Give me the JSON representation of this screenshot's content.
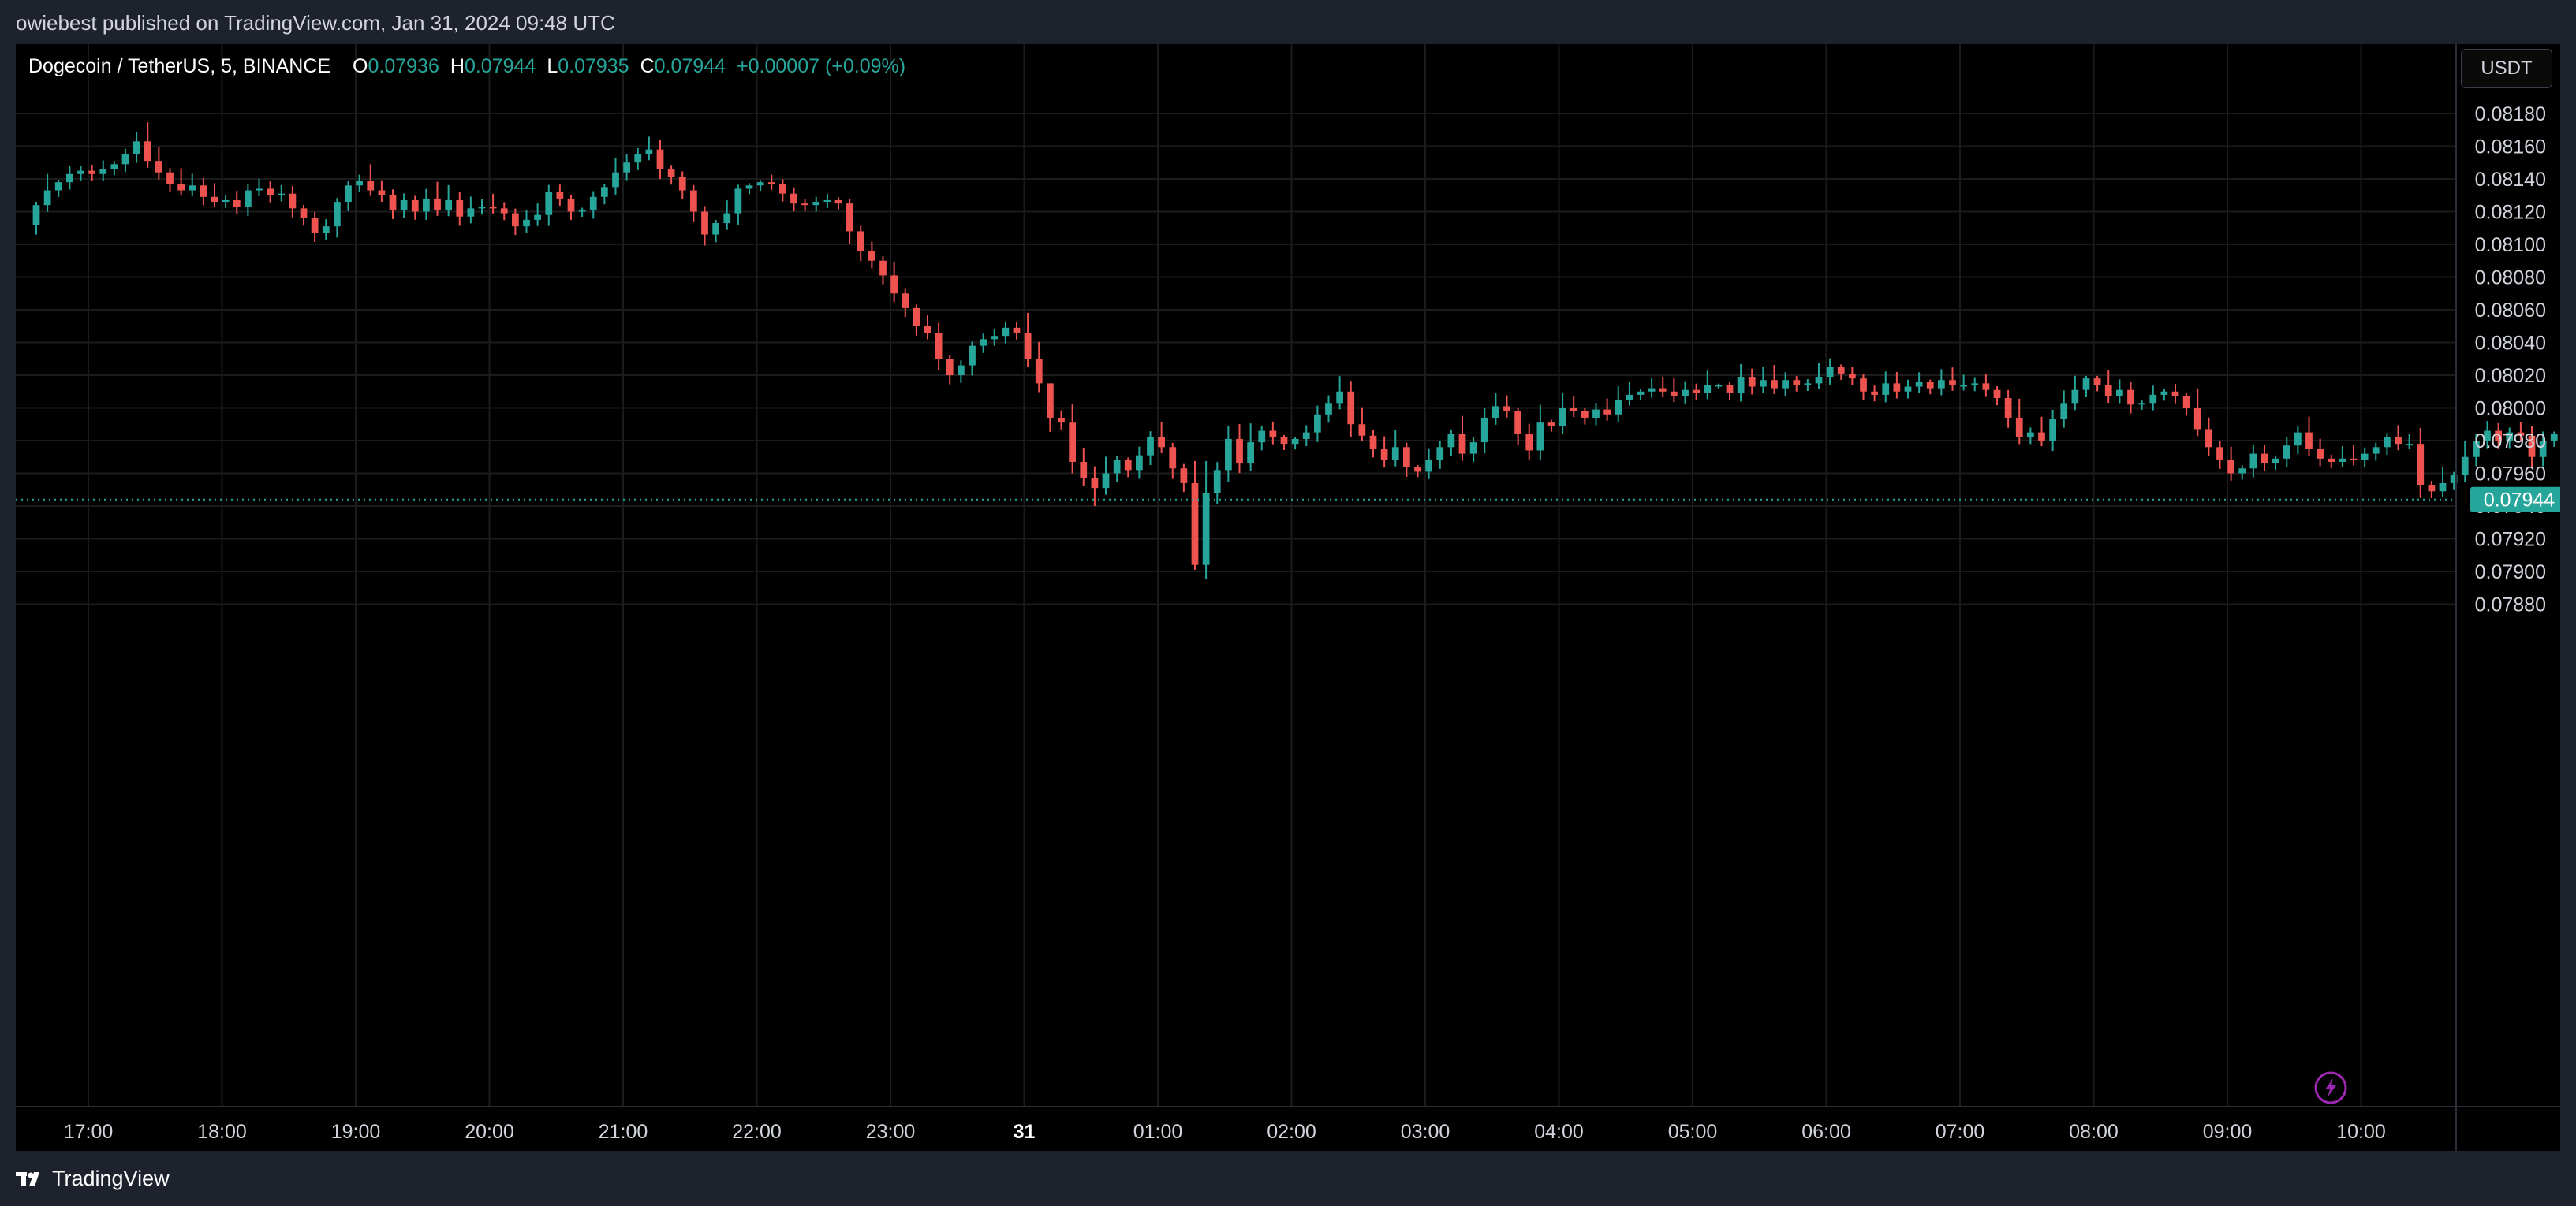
{
  "header": {
    "published": "owiebest published on TradingView.com, Jan 31, 2024 09:48 UTC"
  },
  "legend": {
    "symbol": "Dogecoin / TetherUS, 5, BINANCE",
    "o_label": "O",
    "o_value": "0.07936",
    "h_label": "H",
    "h_value": "0.07944",
    "l_label": "L",
    "l_value": "0.07935",
    "c_label": "C",
    "c_value": "0.07944",
    "change": "+0.00007 (+0.09%)"
  },
  "currency_button": "USDT",
  "footer": {
    "brand": "TradingView"
  },
  "colors": {
    "up": "#26a69a",
    "down": "#ef5350",
    "background": "#000000",
    "frame": "#1e222d",
    "grid": "#1b1b1b",
    "text": "#d1d4dc",
    "accent_icon": "#9c27b0"
  },
  "chart_data": {
    "type": "candlestick",
    "interval_minutes": 5,
    "ylim": [
      0.07876,
      0.08192
    ],
    "y_ticks": [
      0.0788,
      0.079,
      0.0792,
      0.0794,
      0.0796,
      0.0798,
      0.08,
      0.0802,
      0.0804,
      0.0806,
      0.0808,
      0.081,
      0.0812,
      0.0814,
      0.0816,
      0.0818
    ],
    "y_tick_labels": [
      "0.07880",
      "0.07900",
      "0.07920",
      "0.07940",
      "0.07960",
      "0.07980",
      "0.08000",
      "0.08020",
      "0.08040",
      "0.08060",
      "0.08080",
      "0.08100",
      "0.08120",
      "0.08140",
      "0.08160",
      "0.08180"
    ],
    "x_start": "Jan 30 16:30",
    "x_end": "Jan 31 10:40",
    "x_ticks": [
      "17:00",
      "18:00",
      "19:00",
      "20:00",
      "21:00",
      "22:00",
      "23:00",
      "31",
      "01:00",
      "02:00",
      "03:00",
      "04:00",
      "05:00",
      "06:00",
      "07:00",
      "08:00",
      "09:00",
      "10:00"
    ],
    "x_tick_bold": [
      false,
      false,
      false,
      false,
      false,
      false,
      false,
      true,
      false,
      false,
      false,
      false,
      false,
      false,
      false,
      false,
      false,
      false
    ],
    "last_price": "0.07944",
    "last_price_value": 0.07944,
    "closes": [
      0.08124,
      0.08133,
      0.08138,
      0.08143,
      0.08145,
      0.08143,
      0.08146,
      0.08149,
      0.08155,
      0.08163,
      0.08151,
      0.08144,
      0.08137,
      0.08133,
      0.08136,
      0.08129,
      0.08126,
      0.08127,
      0.08123,
      0.08133,
      0.08134,
      0.0813,
      0.08131,
      0.08122,
      0.08116,
      0.08107,
      0.08111,
      0.08126,
      0.08136,
      0.08139,
      0.08133,
      0.0813,
      0.08121,
      0.08127,
      0.0812,
      0.08128,
      0.08121,
      0.08127,
      0.08117,
      0.08122,
      0.08123,
      0.08122,
      0.08119,
      0.08111,
      0.08115,
      0.08118,
      0.08132,
      0.08128,
      0.0812,
      0.08121,
      0.08129,
      0.08135,
      0.08144,
      0.0815,
      0.08155,
      0.08158,
      0.08146,
      0.08141,
      0.08133,
      0.0812,
      0.08106,
      0.08113,
      0.08119,
      0.08134,
      0.08136,
      0.08138,
      0.08137,
      0.08131,
      0.08125,
      0.08124,
      0.08126,
      0.08127,
      0.08125,
      0.08108,
      0.08096,
      0.0809,
      0.08081,
      0.0807,
      0.08061,
      0.0805,
      0.08046,
      0.0803,
      0.0802,
      0.08026,
      0.08038,
      0.08042,
      0.08044,
      0.08049,
      0.08046,
      0.0803,
      0.08015,
      0.07994,
      0.07991,
      0.07967,
      0.07957,
      0.07951,
      0.0796,
      0.07968,
      0.07962,
      0.07971,
      0.07982,
      0.07976,
      0.07963,
      0.07954,
      0.07904,
      0.07948,
      0.07962,
      0.07981,
      0.07966,
      0.07979,
      0.07986,
      0.07982,
      0.07978,
      0.07981,
      0.07985,
      0.07996,
      0.08003,
      0.0801,
      0.0799,
      0.07983,
      0.07975,
      0.07968,
      0.07976,
      0.07964,
      0.07961,
      0.07968,
      0.07976,
      0.07984,
      0.07972,
      0.07979,
      0.07994,
      0.08001,
      0.07998,
      0.07984,
      0.07974,
      0.07991,
      0.07989,
      0.08,
      0.07998,
      0.07994,
      0.07999,
      0.07996,
      0.08005,
      0.08008,
      0.0801,
      0.08012,
      0.0801,
      0.08007,
      0.08011,
      0.08009,
      0.08014,
      0.08014,
      0.08009,
      0.08019,
      0.08013,
      0.08017,
      0.08012,
      0.08017,
      0.08014,
      0.08015,
      0.08019,
      0.08025,
      0.08021,
      0.08018,
      0.0801,
      0.08008,
      0.08015,
      0.0801,
      0.08013,
      0.08016,
      0.08012,
      0.08017,
      0.08014,
      0.08014,
      0.08015,
      0.08011,
      0.08006,
      0.07994,
      0.07982,
      0.07985,
      0.0798,
      0.07993,
      0.08003,
      0.08011,
      0.08018,
      0.08014,
      0.08007,
      0.08011,
      0.08002,
      0.08003,
      0.08008,
      0.0801,
      0.08007,
      0.08,
      0.07987,
      0.07976,
      0.07968,
      0.0796,
      0.07963,
      0.07972,
      0.07966,
      0.07969,
      0.07977,
      0.07985,
      0.07975,
      0.07969,
      0.07967,
      0.07969,
      0.07968,
      0.07972,
      0.07976,
      0.07982,
      0.07978,
      0.07978,
      0.07953,
      0.07949,
      0.07954,
      0.07959,
      0.0797,
      0.0798,
      0.07986,
      0.0798,
      0.07985,
      0.07983,
      0.0797,
      0.0798,
      0.07984,
      0.07983,
      0.07955,
      0.0794,
      0.07931,
      0.07935,
      0.07936,
      0.07929,
      0.07928,
      0.0791,
      0.07925,
      0.07931,
      0.07936,
      0.07944
    ]
  }
}
